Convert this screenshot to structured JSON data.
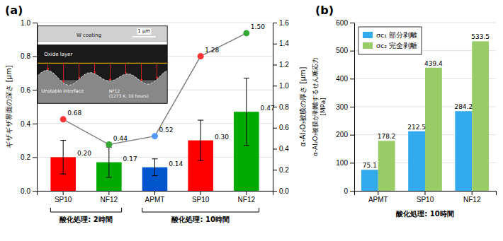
{
  "chart_data": [
    {
      "type": "bar",
      "title": "(a)",
      "categories": [
        "SP10",
        "NF12",
        "APMT",
        "SP10",
        "NF12"
      ],
      "groups": [
        {
          "label": "酸化処理: 2時間",
          "categories": [
            "SP10",
            "NF12"
          ]
        },
        {
          "label": "酸化処理: 10時間",
          "categories": [
            "APMT",
            "SP10",
            "NF12"
          ]
        }
      ],
      "series": [
        {
          "type": "bar",
          "values": [
            0.2,
            0.17,
            0.14,
            0.3,
            0.47
          ],
          "errors": [
            0.1,
            0.09,
            0.05,
            0.12,
            0.2
          ],
          "colors": [
            "#ff0000",
            "#00aa00",
            "#0055cc",
            "#ff0000",
            "#00aa00"
          ],
          "data_labels": true,
          "value_labels": [
            "0.20",
            "0.17",
            "0.14",
            "0.30",
            "0.47"
          ]
        },
        {
          "type": "line",
          "axis": "y2",
          "color": "gray",
          "marker": "circle",
          "values": [
            0.68,
            0.44,
            0.52,
            1.28,
            1.5
          ],
          "colors": [
            "#ff3333",
            "#33aa33",
            "#5599ff",
            "#ff3333",
            "#33aa33"
          ],
          "data_labels": true,
          "value_labels": [
            "0.68",
            "0.44",
            "0.52",
            "1.28",
            "1.50"
          ]
        }
      ],
      "ylabel": "ギザギザ界面の深さ [μm]",
      "y2label": "α-Al₂O₃被膜の厚さ [μm]",
      "ylim": [
        0,
        1
      ],
      "yticks": [
        {
          "value": 0,
          "label": "0.0"
        },
        0.2,
        0.4,
        0.6,
        0.8,
        {
          "value": 1,
          "label": "1.0"
        }
      ],
      "y2lim": [
        0,
        1.6
      ],
      "y2ticks": [
        {
          "value": 0,
          "label": "0.0"
        },
        0.2,
        0.4,
        0.6,
        0.8,
        {
          "value": 1,
          "label": "1.0"
        },
        1.2,
        1.4,
        1.6
      ],
      "grid": true,
      "annotations": [
        "W coating",
        "Oxide layer",
        "Unstable interface",
        "NF12\n(1273 K, 10 hours)",
        "1 μm"
      ]
    },
    {
      "type": "bar",
      "title": "(b)",
      "categories": [
        "APMT",
        "SP10",
        "NF12"
      ],
      "series": [
        {
          "name": "σc₁  部分剥離",
          "color": "#33aaee",
          "values": [
            75.1,
            212.5,
            284.2
          ]
        },
        {
          "name": "σc₂  完全剥離",
          "color": "#99cc66",
          "values": [
            178.2,
            439.4,
            533.5
          ]
        }
      ],
      "xlabel": "酸化処理: 10時間",
      "ylabel": "α-Al₂O₃被膜が剥離するせん断応力\n[MPa]",
      "ylim": [
        0,
        600
      ],
      "yticks": [
        0,
        100,
        200,
        300,
        400,
        500,
        600
      ],
      "grid": true,
      "legend": "upper left",
      "data_labels": true
    }
  ]
}
